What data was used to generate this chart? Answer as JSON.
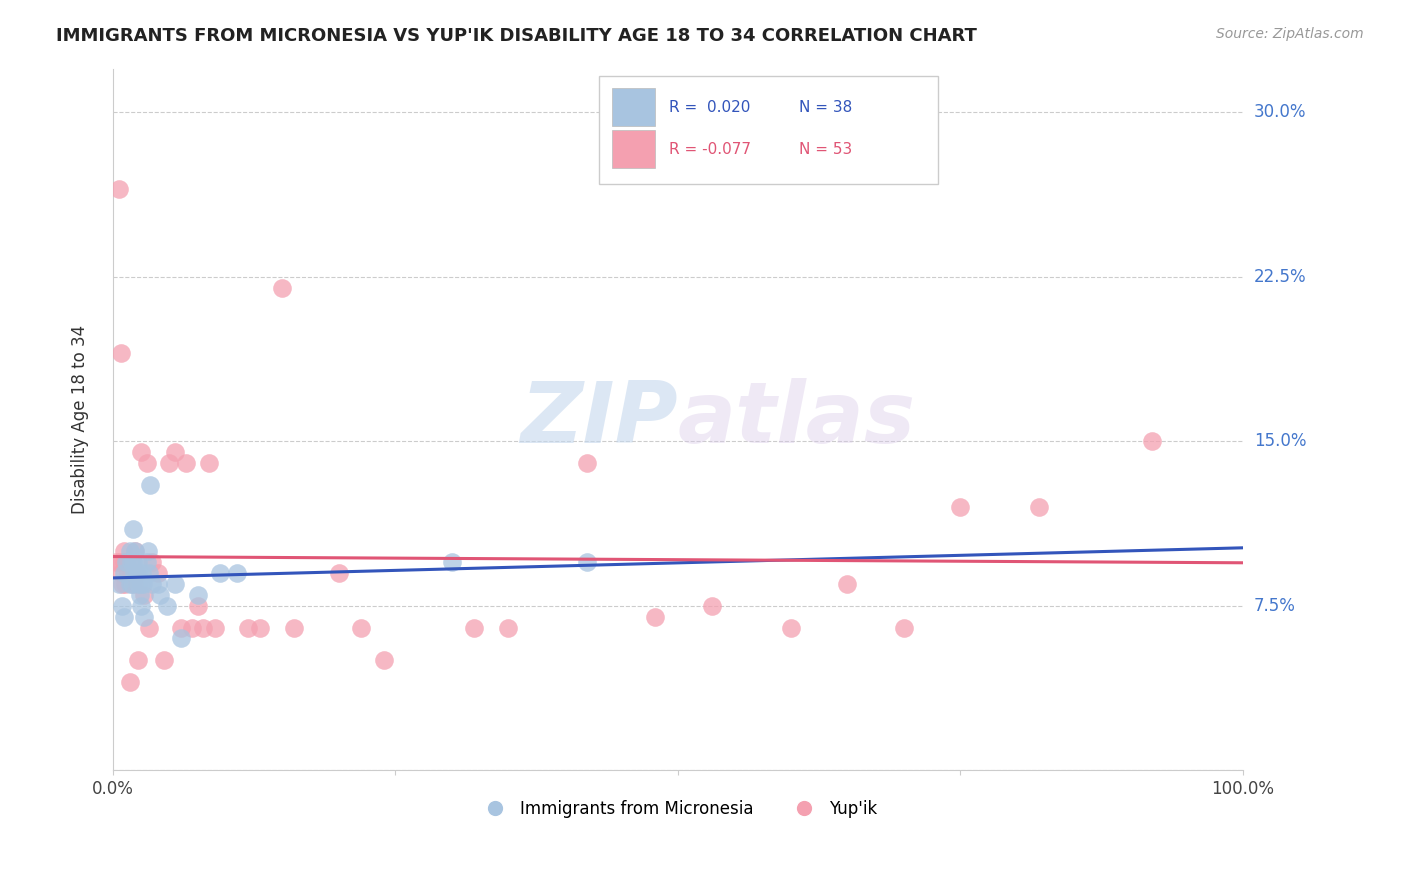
{
  "title": "IMMIGRANTS FROM MICRONESIA VS YUP'IK DISABILITY AGE 18 TO 34 CORRELATION CHART",
  "source_text": "Source: ZipAtlas.com",
  "ylabel": "Disability Age 18 to 34",
  "xlim": [
    0.0,
    1.0
  ],
  "ylim": [
    0.0,
    0.32
  ],
  "x_ticks": [
    0.0,
    0.25,
    0.5,
    0.75,
    1.0
  ],
  "x_tick_labels": [
    "0.0%",
    "",
    "",
    "",
    "100.0%"
  ],
  "y_ticks": [
    0.0,
    0.075,
    0.15,
    0.225,
    0.3
  ],
  "y_tick_labels": [
    "",
    "7.5%",
    "15.0%",
    "22.5%",
    "30.0%"
  ],
  "legend_r1": "R =  0.020",
  "legend_n1": "N = 38",
  "legend_r2": "R = -0.077",
  "legend_n2": "N = 53",
  "color_micronesia": "#a8c4e0",
  "color_yupik": "#f4a0b0",
  "trend_color_micronesia": "#3355bb",
  "trend_color_yupik": "#e05575",
  "watermark_zip": "ZIP",
  "watermark_atlas": "atlas",
  "grid_color": "#cccccc",
  "micronesia_x": [
    0.005,
    0.008,
    0.01,
    0.01,
    0.012,
    0.015,
    0.015,
    0.016,
    0.017,
    0.018,
    0.018,
    0.019,
    0.02,
    0.021,
    0.022,
    0.022,
    0.023,
    0.024,
    0.025,
    0.025,
    0.026,
    0.027,
    0.028,
    0.03,
    0.031,
    0.032,
    0.033,
    0.035,
    0.04,
    0.042,
    0.048,
    0.055,
    0.06,
    0.075,
    0.095,
    0.11,
    0.3,
    0.42
  ],
  "micronesia_y": [
    0.085,
    0.075,
    0.09,
    0.07,
    0.095,
    0.1,
    0.085,
    0.095,
    0.085,
    0.11,
    0.095,
    0.09,
    0.1,
    0.09,
    0.085,
    0.095,
    0.09,
    0.08,
    0.085,
    0.075,
    0.09,
    0.085,
    0.07,
    0.095,
    0.1,
    0.09,
    0.13,
    0.085,
    0.085,
    0.08,
    0.075,
    0.085,
    0.06,
    0.08,
    0.09,
    0.09,
    0.095,
    0.095
  ],
  "yupik_x": [
    0.003,
    0.005,
    0.006,
    0.007,
    0.007,
    0.008,
    0.01,
    0.01,
    0.011,
    0.012,
    0.013,
    0.015,
    0.015,
    0.016,
    0.018,
    0.019,
    0.02,
    0.021,
    0.022,
    0.025,
    0.028,
    0.03,
    0.032,
    0.035,
    0.04,
    0.045,
    0.05,
    0.055,
    0.06,
    0.065,
    0.07,
    0.075,
    0.08,
    0.085,
    0.09,
    0.12,
    0.13,
    0.15,
    0.16,
    0.2,
    0.22,
    0.24,
    0.32,
    0.35,
    0.42,
    0.48,
    0.53,
    0.6,
    0.65,
    0.7,
    0.75,
    0.82,
    0.92
  ],
  "yupik_y": [
    0.095,
    0.265,
    0.095,
    0.19,
    0.09,
    0.085,
    0.1,
    0.095,
    0.085,
    0.095,
    0.09,
    0.04,
    0.095,
    0.09,
    0.095,
    0.085,
    0.1,
    0.09,
    0.05,
    0.145,
    0.08,
    0.14,
    0.065,
    0.095,
    0.09,
    0.05,
    0.14,
    0.145,
    0.065,
    0.14,
    0.065,
    0.075,
    0.065,
    0.14,
    0.065,
    0.065,
    0.065,
    0.22,
    0.065,
    0.09,
    0.065,
    0.05,
    0.065,
    0.065,
    0.14,
    0.07,
    0.075,
    0.065,
    0.085,
    0.065,
    0.12,
    0.12,
    0.15
  ]
}
